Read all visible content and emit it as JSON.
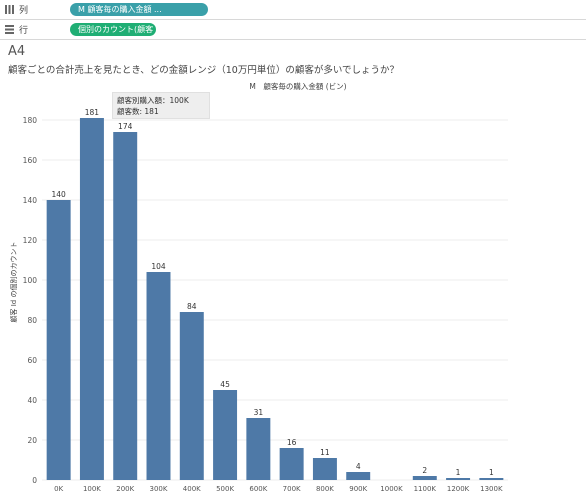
{
  "shelves": {
    "columns": {
      "label": "列",
      "pill": "M 顧客毎の購入金額 ..."
    },
    "rows": {
      "label": "行",
      "pill": "個別のカウント(顧客 Id)"
    }
  },
  "sheet": {
    "title": "A4",
    "subtitle": "顧客ごとの合計売上を見たとき、どの金額レンジ（10万円単位）の顧客が多いでしょうか？"
  },
  "tooltip": {
    "line1": "顧客別購入額：100K",
    "line2": "顧客数: 181"
  },
  "colors": {
    "bar": "#4e79a7",
    "grid": "#ececec",
    "axis": "#555555"
  },
  "chart_data": {
    "type": "bar",
    "title": "M　顧客毎の購入金額 (ビン)",
    "xlabel": "",
    "ylabel": "顧客 Id の個別のカウント",
    "categories": [
      "0K",
      "100K",
      "200K",
      "300K",
      "400K",
      "500K",
      "600K",
      "700K",
      "800K",
      "900K",
      "1000K",
      "1100K",
      "1200K",
      "1300K"
    ],
    "values": [
      140,
      181,
      174,
      104,
      84,
      45,
      31,
      16,
      11,
      4,
      null,
      2,
      1,
      1
    ],
    "ylim": [
      0,
      190
    ],
    "yticks": [
      0,
      20,
      40,
      60,
      80,
      100,
      120,
      140,
      160,
      180
    ],
    "grid": true
  }
}
